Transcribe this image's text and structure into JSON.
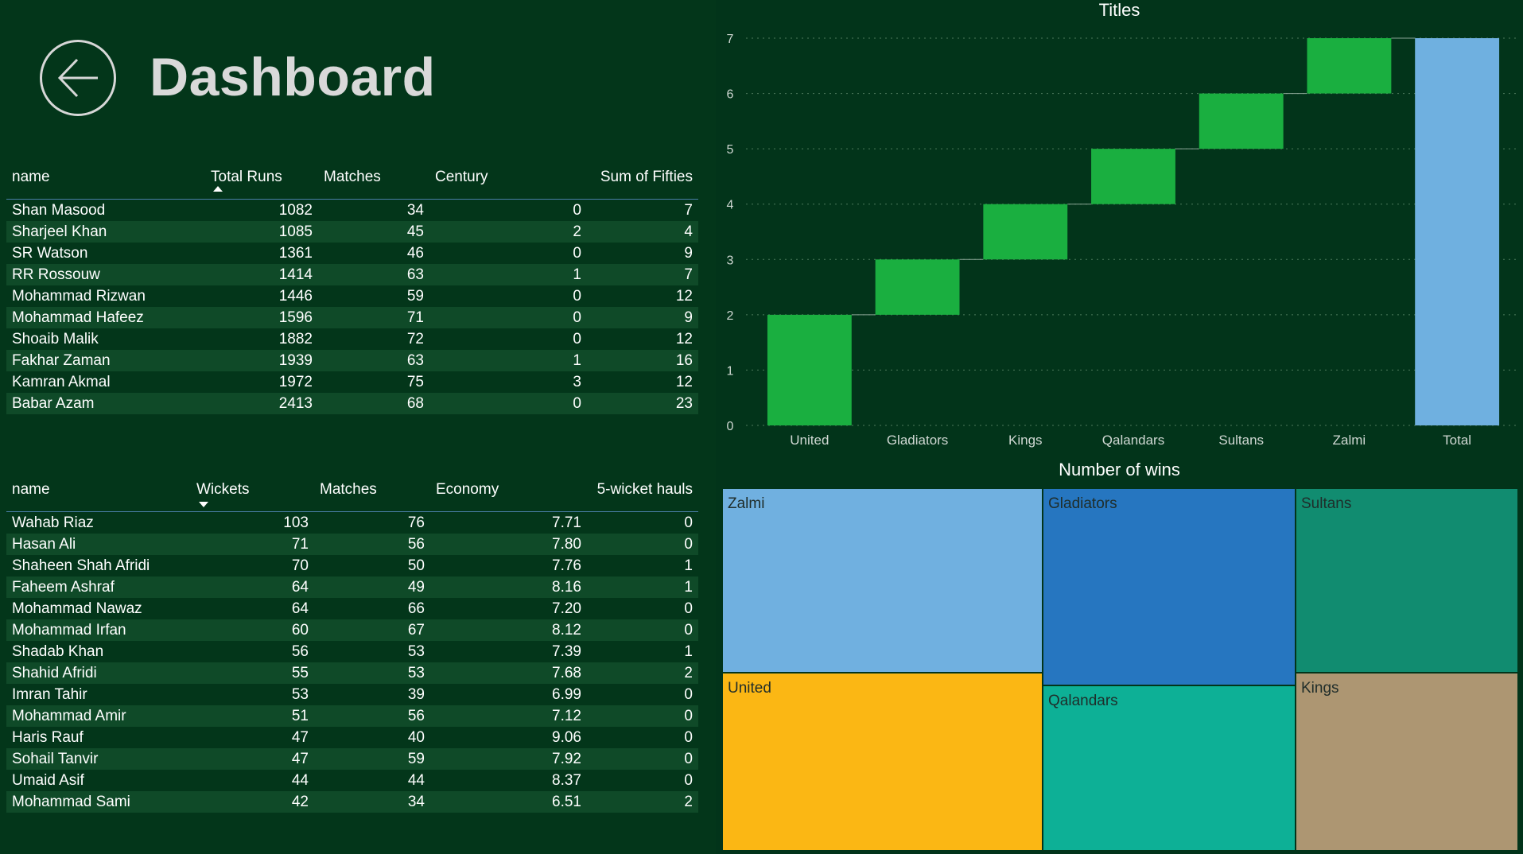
{
  "header": {
    "title": "Dashboard",
    "back_icon": "arrow-left-icon"
  },
  "batting_table": {
    "columns": [
      "name",
      "Total Runs",
      "Matches",
      "Century",
      "Sum of Fifties"
    ],
    "sort_column": "Total Runs",
    "sort_direction": "ascending",
    "rows": [
      [
        "Shan Masood",
        "1082",
        "34",
        "0",
        "7"
      ],
      [
        "Sharjeel Khan",
        "1085",
        "45",
        "2",
        "4"
      ],
      [
        "SR Watson",
        "1361",
        "46",
        "0",
        "9"
      ],
      [
        "RR Rossouw",
        "1414",
        "63",
        "1",
        "7"
      ],
      [
        "Mohammad Rizwan",
        "1446",
        "59",
        "0",
        "12"
      ],
      [
        "Mohammad Hafeez",
        "1596",
        "71",
        "0",
        "9"
      ],
      [
        "Shoaib Malik",
        "1882",
        "72",
        "0",
        "12"
      ],
      [
        "Fakhar Zaman",
        "1939",
        "63",
        "1",
        "16"
      ],
      [
        "Kamran Akmal",
        "1972",
        "75",
        "3",
        "12"
      ],
      [
        "Babar Azam",
        "2413",
        "68",
        "0",
        "23"
      ]
    ]
  },
  "bowling_table": {
    "columns": [
      "name",
      "Wickets",
      "Matches",
      "Economy",
      "5-wicket hauls"
    ],
    "sort_column": "Wickets",
    "sort_direction": "descending",
    "rows": [
      [
        "Wahab Riaz",
        "103",
        "76",
        "7.71",
        "0"
      ],
      [
        "Hasan Ali",
        "71",
        "56",
        "7.80",
        "0"
      ],
      [
        "Shaheen Shah Afridi",
        "70",
        "50",
        "7.76",
        "1"
      ],
      [
        "Faheem Ashraf",
        "64",
        "49",
        "8.16",
        "1"
      ],
      [
        "Mohammad Nawaz",
        "64",
        "66",
        "7.20",
        "0"
      ],
      [
        "Mohammad Irfan",
        "60",
        "67",
        "8.12",
        "0"
      ],
      [
        "Shadab Khan",
        "56",
        "53",
        "7.39",
        "1"
      ],
      [
        "Shahid Afridi",
        "55",
        "53",
        "7.68",
        "2"
      ],
      [
        "Imran Tahir",
        "53",
        "39",
        "6.99",
        "0"
      ],
      [
        "Mohammad Amir",
        "51",
        "56",
        "7.12",
        "0"
      ],
      [
        "Haris Rauf",
        "47",
        "40",
        "9.06",
        "0"
      ],
      [
        "Sohail Tanvir",
        "47",
        "59",
        "7.92",
        "0"
      ],
      [
        "Umaid Asif",
        "44",
        "44",
        "8.37",
        "0"
      ],
      [
        "Mohammad Sami",
        "42",
        "34",
        "6.51",
        "2"
      ]
    ]
  },
  "chart_data": [
    {
      "type": "bar",
      "subtype": "waterfall",
      "title": "Titles",
      "categories": [
        "United",
        "Gladiators",
        "Kings",
        "Qalandars",
        "Sultans",
        "Zalmi",
        "Total"
      ],
      "values": [
        2,
        1,
        1,
        1,
        1,
        1,
        7
      ],
      "ylim": [
        0,
        7
      ],
      "yticks": [
        0,
        1,
        2,
        3,
        4,
        5,
        6,
        7
      ],
      "grid": true,
      "colors": {
        "increase": "#1aaf40",
        "total": "#6fb0e0",
        "grid": "#4d7a5c",
        "connector": "#8aa595",
        "axis_text": "#d0d8d3"
      }
    },
    {
      "type": "treemap",
      "title": "Number of wins",
      "items": [
        {
          "name": "Zalmi",
          "color": "#70b0e0"
        },
        {
          "name": "United",
          "color": "#fbb714"
        },
        {
          "name": "Gladiators",
          "color": "#2676c0"
        },
        {
          "name": "Qalandars",
          "color": "#0db096"
        },
        {
          "name": "Sultans",
          "color": "#118c70"
        },
        {
          "name": "Kings",
          "color": "#ad9672"
        }
      ]
    }
  ]
}
